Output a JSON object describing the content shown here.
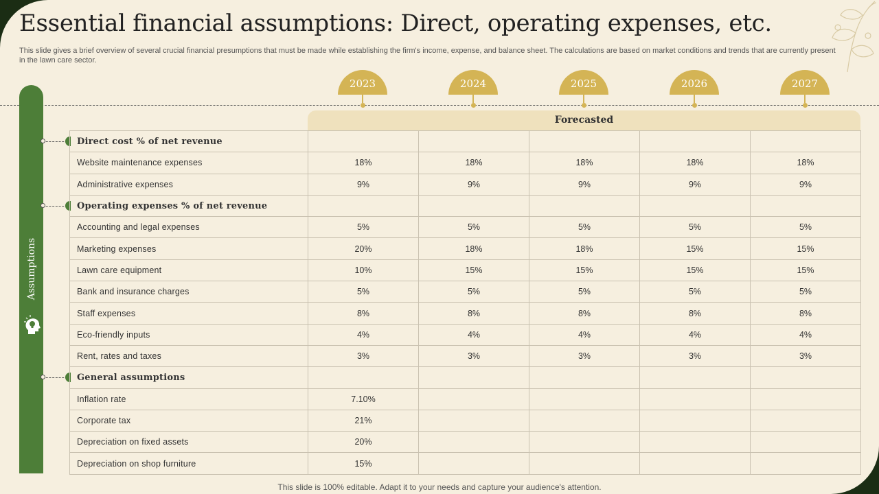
{
  "title": "Essential financial assumptions: Direct, operating expenses, etc.",
  "subtitle": "This slide gives a brief overview of several crucial financial presumptions that must be made while establishing the firm's income, expense, and balance sheet. The calculations are based on market conditions and trends that are currently present in the lawn care sector.",
  "years": [
    "2023",
    "2024",
    "2025",
    "2026",
    "2027"
  ],
  "forecast_label": "Forecasted",
  "sidebar_label": "Assumptions",
  "sections": [
    {
      "heading": "Direct cost % of net revenue",
      "rows": [
        {
          "label": "Website maintenance expenses",
          "values": [
            "18%",
            "18%",
            "18%",
            "18%",
            "18%"
          ]
        },
        {
          "label": "Administrative expenses",
          "values": [
            "9%",
            "9%",
            "9%",
            "9%",
            "9%"
          ]
        }
      ]
    },
    {
      "heading": "Operating expenses % of net revenue",
      "rows": [
        {
          "label": "Accounting and legal expenses",
          "values": [
            "5%",
            "5%",
            "5%",
            "5%",
            "5%"
          ]
        },
        {
          "label": "Marketing expenses",
          "values": [
            "20%",
            "18%",
            "18%",
            "15%",
            "15%"
          ]
        },
        {
          "label": "Lawn care equipment",
          "values": [
            "10%",
            "15%",
            "15%",
            "15%",
            "15%"
          ]
        },
        {
          "label": "Bank and insurance charges",
          "values": [
            "5%",
            "5%",
            "5%",
            "5%",
            "5%"
          ]
        },
        {
          "label": "Staff expenses",
          "values": [
            "8%",
            "8%",
            "8%",
            "8%",
            "8%"
          ]
        },
        {
          "label": "Eco-friendly inputs",
          "values": [
            "4%",
            "4%",
            "4%",
            "4%",
            "4%"
          ]
        },
        {
          "label": "Rent, rates and taxes",
          "values": [
            "3%",
            "3%",
            "3%",
            "3%",
            "3%"
          ]
        }
      ]
    },
    {
      "heading": "General assumptions",
      "rows": [
        {
          "label": "Inflation rate",
          "values": [
            "7.10%",
            "",
            "",
            "",
            ""
          ]
        },
        {
          "label": "Corporate tax",
          "values": [
            "21%",
            "",
            "",
            "",
            ""
          ]
        },
        {
          "label": "Depreciation on fixed assets",
          "values": [
            "20%",
            "",
            "",
            "",
            ""
          ]
        },
        {
          "label": "Depreciation on shop furniture",
          "values": [
            "15%",
            "",
            "",
            "",
            ""
          ]
        }
      ]
    }
  ],
  "footer": "This slide is 100% editable. Adapt it to your needs and capture your audience's attention.",
  "colors": {
    "accent_green": "#4d7e38",
    "accent_gold": "#d4b455",
    "background": "#f6efdf",
    "band": "#efe1bd"
  },
  "icons": [
    "head-bulb-icon",
    "floral-icon"
  ]
}
